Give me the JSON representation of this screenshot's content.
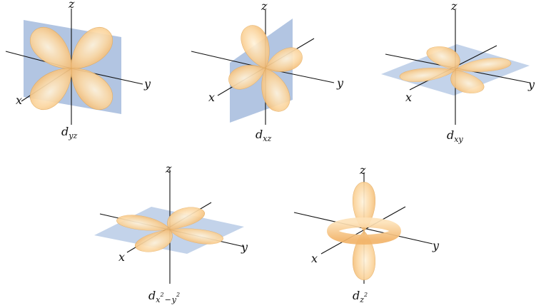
{
  "axes": {
    "x": "x",
    "y": "y",
    "z": "z"
  },
  "orbitals": [
    {
      "id": "dyz",
      "base": "d",
      "sub": "yz"
    },
    {
      "id": "dxz",
      "base": "d",
      "sub": "xz"
    },
    {
      "id": "dxy",
      "base": "d",
      "sub": "xy"
    },
    {
      "id": "dx2y2",
      "base": "d",
      "sub_a": "x",
      "sup_a": "2",
      "minus": "−",
      "sub_b": "y",
      "sup_b": "2"
    },
    {
      "id": "dz2",
      "base": "d",
      "sub": "z",
      "sup": "2"
    }
  ]
}
